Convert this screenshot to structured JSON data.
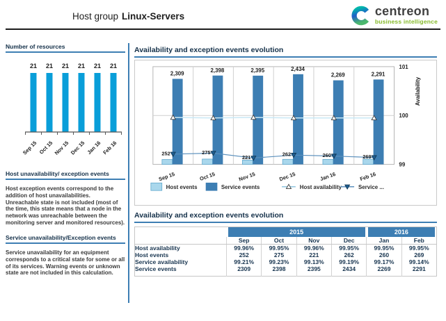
{
  "header": {
    "title_prefix": "Host group",
    "title_bold": "Linux-Servers",
    "logo": {
      "brand": "centreon",
      "tagline": "business intelligence"
    }
  },
  "sidebar": {
    "resources": {
      "title": "Number of resources"
    },
    "host_section": {
      "title": "Host unavailability/ exception events",
      "body": "Host exception events correspond to the addition of host unavailabilities. Unreachable state is not included (most of the time, this state means that a node in the network was unreachable between the monitoring server and monitored resources)."
    },
    "service_section": {
      "title": "Service unavailability/Exception events",
      "body": "Service unavailability for an equipment corresponds to a critical state for some or all of its services. Warning events or unknown state are not included in this calculation."
    }
  },
  "main": {
    "chart_title": "Availability and exception events evolution",
    "table_title": "Availability and exception events evolution",
    "table": {
      "year_groups": [
        {
          "label": "2015",
          "span": 4
        },
        {
          "label": "2016",
          "span": 2
        }
      ],
      "months": [
        "Sep",
        "Oct",
        "Nov",
        "Dec",
        "Jan",
        "Feb"
      ],
      "rows": [
        {
          "label": "Host availability",
          "values": [
            "99.96%",
            "99.95%",
            "99.96%",
            "99.95%",
            "99.95%",
            "99.95%"
          ]
        },
        {
          "label": "Host events",
          "values": [
            "252",
            "275",
            "221",
            "262",
            "260",
            "269"
          ]
        },
        {
          "label": "Service availability",
          "values": [
            "99.21%",
            "99.23%",
            "99.13%",
            "99.19%",
            "99.17%",
            "99.14%"
          ]
        },
        {
          "label": "Service events",
          "values": [
            "2309",
            "2398",
            "2395",
            "2434",
            "2269",
            "2291"
          ]
        }
      ]
    }
  },
  "chart_data": [
    {
      "type": "bar",
      "title": "Number of resources",
      "categories": [
        "Sep 15",
        "Oct 15",
        "Nov 15",
        "Dec 15",
        "Jan 16",
        "Feb 16"
      ],
      "values": [
        21,
        21,
        21,
        21,
        21,
        21
      ],
      "bar_color": "#099ed9",
      "xlabel": "",
      "ylabel": "",
      "grid": false
    },
    {
      "type": "bar",
      "subtype": "combo-bar-line",
      "title": "Availability and exception events evolution",
      "categories": [
        "Sep 15",
        "Oct 15",
        "Nov 15",
        "Dec 15",
        "Jan 16",
        "Feb 16"
      ],
      "series": [
        {
          "name": "Host events",
          "type": "bar",
          "values": [
            252,
            275,
            221,
            262,
            260,
            269
          ],
          "color": "#a9d7ec",
          "border": "#5fa8cd"
        },
        {
          "name": "Service events",
          "type": "bar",
          "values": [
            2309,
            2398,
            2395,
            2434,
            2269,
            2291
          ],
          "color": "#3d7eb3"
        },
        {
          "name": "Host availability",
          "type": "line",
          "marker": "triangle-up",
          "values": [
            99.96,
            99.95,
            99.96,
            99.95,
            99.95,
            99.95
          ],
          "color": "#c9e8f5"
        },
        {
          "name": "Service ...",
          "type": "line",
          "marker": "triangle-down",
          "values": [
            99.21,
            99.23,
            99.13,
            99.19,
            99.17,
            99.14
          ],
          "color": "#5b90bd",
          "marker_fill": "#1d5d90"
        }
      ],
      "right_axis": {
        "label": "Availability",
        "min": 99,
        "max": 101,
        "ticks": [
          101,
          100,
          99
        ]
      },
      "legend": [
        "Host events",
        "Service events",
        "Host availability",
        "Service ..."
      ],
      "legend_position": "bottom",
      "grid": true
    }
  ]
}
